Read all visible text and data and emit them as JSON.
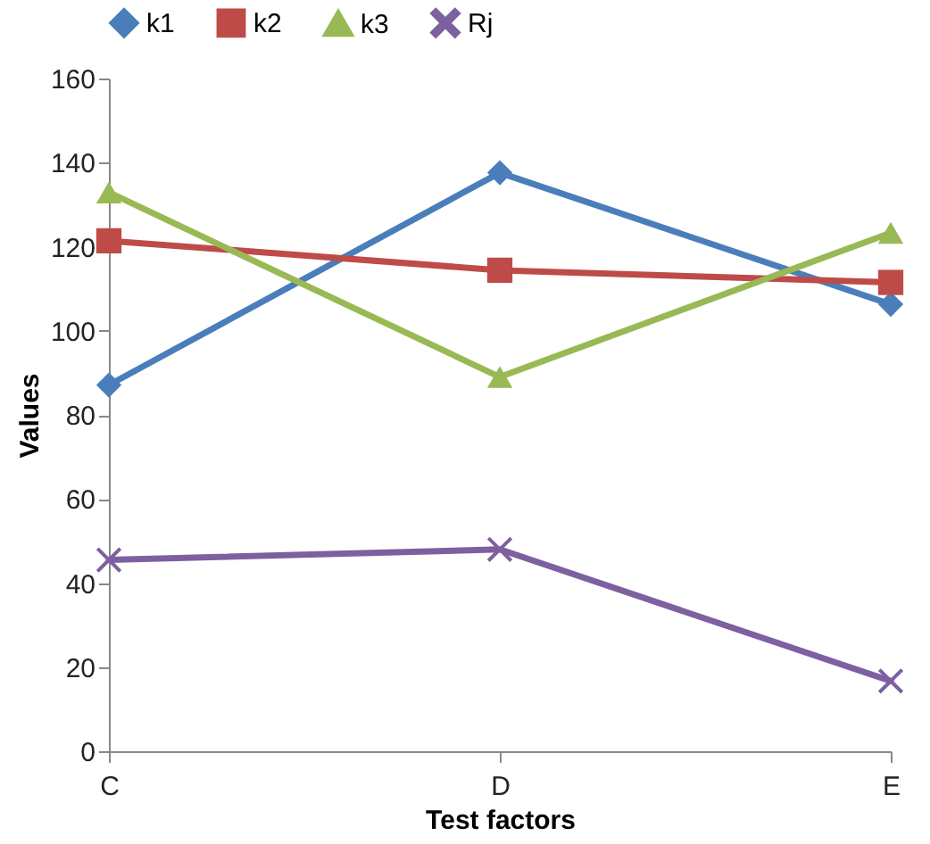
{
  "chart_data": {
    "type": "line",
    "xlabel": "Test factors",
    "ylabel": "Values",
    "categories": [
      "C",
      "D",
      "E"
    ],
    "ylim": [
      0,
      160
    ],
    "yticks": [
      0,
      20,
      40,
      60,
      80,
      100,
      120,
      140,
      160
    ],
    "grid": false,
    "legend": "top",
    "line_style": "solid",
    "series": [
      {
        "name": "k1",
        "color": "#4a7ebb",
        "marker": "diamond",
        "values": [
          87.1,
          137.6,
          106.3
        ]
      },
      {
        "name": "k2",
        "color": "#be4b48",
        "marker": "square",
        "values": [
          121.4,
          114.4,
          111.5
        ]
      },
      {
        "name": "k3",
        "color": "#98b954",
        "marker": "triangle",
        "values": [
          132.9,
          89,
          123.3
        ]
      },
      {
        "name": "Rj",
        "color": "#7d60a0",
        "marker": "cross",
        "values": [
          45.5,
          48,
          16.7
        ]
      }
    ]
  }
}
